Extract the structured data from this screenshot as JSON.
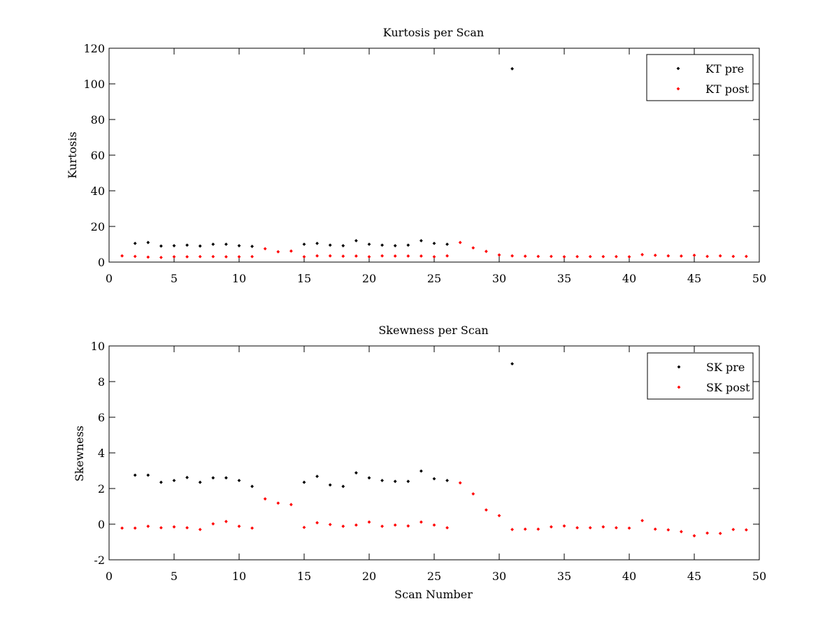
{
  "chart_data": [
    {
      "type": "scatter",
      "title": "Kurtosis per Scan",
      "xlabel": "",
      "ylabel": "Kurtosis",
      "xlim": [
        0,
        50
      ],
      "ylim": [
        0,
        120
      ],
      "xticks": [
        0,
        5,
        10,
        15,
        20,
        25,
        30,
        35,
        40,
        45,
        50
      ],
      "yticks": [
        0,
        20,
        40,
        60,
        80,
        100,
        120
      ],
      "grid": false,
      "legend_position": "top-right",
      "series": [
        {
          "name": "KT pre",
          "color": "#000000",
          "x": [
            2,
            3,
            4,
            5,
            6,
            7,
            8,
            9,
            10,
            11,
            15,
            16,
            17,
            18,
            19,
            20,
            21,
            22,
            23,
            24,
            25,
            26,
            31
          ],
          "y": [
            10.5,
            11,
            9,
            9.2,
            9.5,
            9,
            10,
            10,
            9.2,
            8.8,
            10,
            10.5,
            9.5,
            9.2,
            12,
            10,
            9.5,
            9.2,
            9.5,
            12,
            10.5,
            10,
            108.5
          ]
        },
        {
          "name": "KT post",
          "color": "#ff0000",
          "x": [
            1,
            2,
            3,
            4,
            5,
            6,
            7,
            8,
            9,
            10,
            11,
            12,
            13,
            14,
            15,
            16,
            17,
            18,
            19,
            20,
            21,
            22,
            23,
            24,
            25,
            26,
            27,
            28,
            29,
            30,
            31,
            32,
            33,
            34,
            35,
            36,
            37,
            38,
            39,
            40,
            41,
            42,
            43,
            44,
            45,
            46,
            47,
            48,
            49
          ],
          "y": [
            3.5,
            3.2,
            2.8,
            2.6,
            3,
            3,
            3.1,
            3.1,
            3,
            3,
            3.1,
            7.5,
            5.8,
            6.2,
            3,
            3.5,
            3.5,
            3.3,
            3.4,
            3,
            3.5,
            3.4,
            3.4,
            3.4,
            3,
            3.5,
            11,
            8,
            6,
            4,
            3.5,
            3.3,
            3.2,
            3.2,
            3,
            3.1,
            3.1,
            3.1,
            3.1,
            3,
            4.2,
            3.8,
            3.5,
            3.4,
            3.8,
            3.2,
            3.5,
            3.2,
            3.2
          ]
        }
      ]
    },
    {
      "type": "scatter",
      "title": "Skewness per Scan",
      "xlabel": "Scan Number",
      "ylabel": "Skewness",
      "xlim": [
        0,
        50
      ],
      "ylim": [
        -2,
        10
      ],
      "xticks": [
        0,
        5,
        10,
        15,
        20,
        25,
        30,
        35,
        40,
        45,
        50
      ],
      "yticks": [
        -2,
        0,
        2,
        4,
        6,
        8,
        10
      ],
      "grid": false,
      "legend_position": "top-right",
      "series": [
        {
          "name": "SK pre",
          "color": "#000000",
          "x": [
            2,
            3,
            4,
            5,
            6,
            7,
            8,
            9,
            10,
            11,
            15,
            16,
            17,
            18,
            19,
            20,
            21,
            22,
            23,
            24,
            25,
            26,
            31
          ],
          "y": [
            2.75,
            2.75,
            2.35,
            2.45,
            2.62,
            2.35,
            2.6,
            2.6,
            2.45,
            2.12,
            2.35,
            2.68,
            2.2,
            2.12,
            2.88,
            2.6,
            2.45,
            2.4,
            2.4,
            2.98,
            2.55,
            2.45,
            9.0
          ]
        },
        {
          "name": "SK post",
          "color": "#ff0000",
          "x": [
            1,
            2,
            3,
            4,
            5,
            6,
            7,
            8,
            9,
            10,
            11,
            12,
            13,
            14,
            15,
            16,
            17,
            18,
            19,
            20,
            21,
            22,
            23,
            24,
            25,
            26,
            27,
            28,
            29,
            30,
            31,
            32,
            33,
            34,
            35,
            36,
            37,
            38,
            39,
            40,
            41,
            42,
            43,
            44,
            45,
            46,
            47,
            48,
            49
          ],
          "y": [
            -0.22,
            -0.22,
            -0.12,
            -0.2,
            -0.15,
            -0.2,
            -0.3,
            0.02,
            0.15,
            -0.12,
            -0.22,
            1.42,
            1.18,
            1.1,
            -0.18,
            0.08,
            -0.02,
            -0.12,
            -0.05,
            0.12,
            -0.12,
            -0.05,
            -0.1,
            0.12,
            -0.05,
            -0.2,
            2.32,
            1.7,
            0.8,
            0.48,
            -0.3,
            -0.28,
            -0.28,
            -0.15,
            -0.1,
            -0.2,
            -0.2,
            -0.15,
            -0.2,
            -0.22,
            0.2,
            -0.28,
            -0.32,
            -0.42,
            -0.65,
            -0.5,
            -0.52,
            -0.3,
            -0.32
          ]
        }
      ]
    }
  ]
}
